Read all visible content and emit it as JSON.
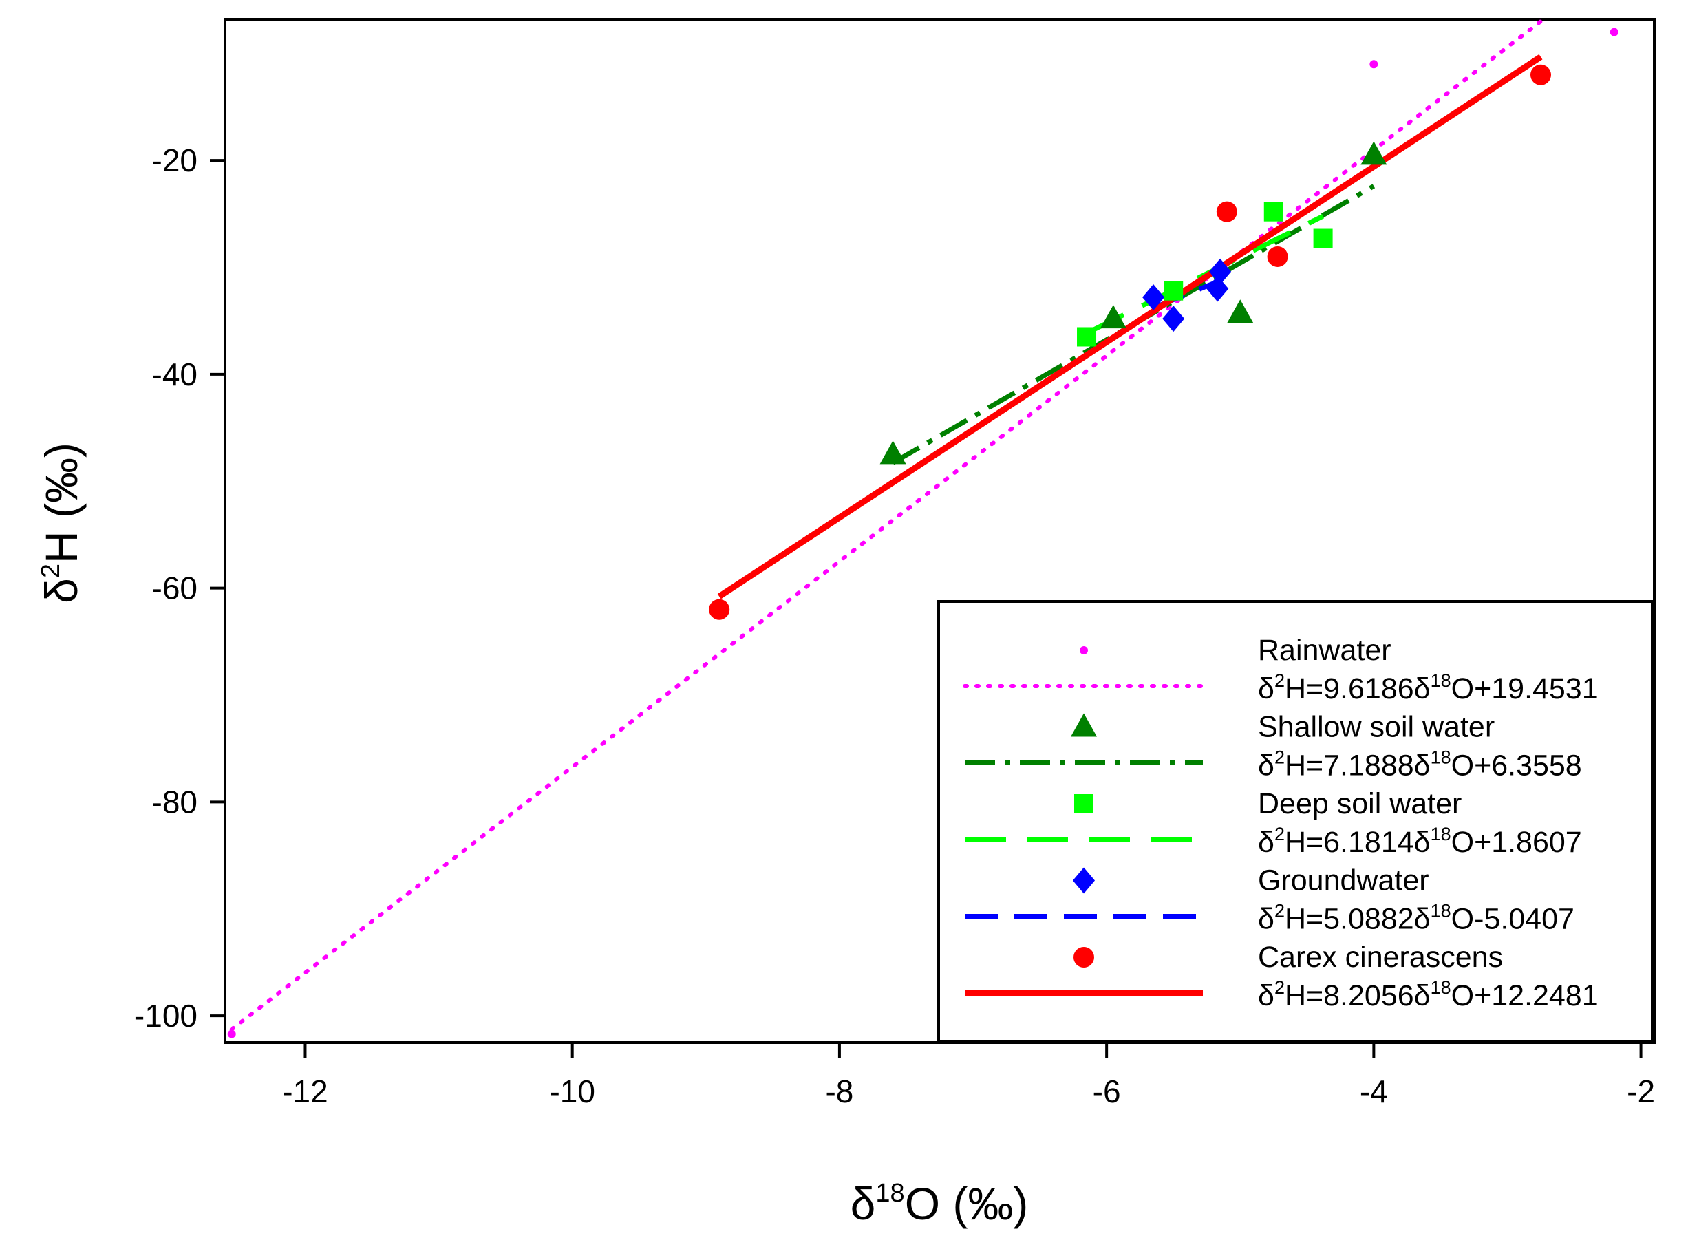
{
  "chart_data": {
    "type": "scatter",
    "title": "",
    "xlabel": {
      "main": "δ",
      "sup": "18",
      "rest": "O (‰)"
    },
    "ylabel": {
      "main": "δ",
      "sup": "2",
      "rest": "H (‰)"
    },
    "xlim": [
      -12.6,
      -1.9
    ],
    "ylim": [
      -102.5,
      -6.8
    ],
    "x_ticks": [
      -12,
      -10,
      -8,
      -6,
      -4,
      -2
    ],
    "y_ticks": [
      -100,
      -80,
      -60,
      -40,
      -20
    ],
    "x_tick_labels": [
      "-12",
      "-10",
      "-8",
      "-6",
      "-4",
      "-2"
    ],
    "y_tick_labels": [
      "-100",
      "-80",
      "-60",
      "-40",
      "-20"
    ],
    "legend_position": "bottom-right",
    "series": [
      {
        "key": "rain",
        "name": "Rainwater",
        "color": "#ff00ff",
        "marker": "dot",
        "line_style": "dotted",
        "x": [
          -12.55,
          -4.0,
          -2.2
        ],
        "y": [
          -101.7,
          -11.0,
          -8.0
        ],
        "fit": {
          "slope": 9.6186,
          "intercept": 19.4531,
          "x_range": [
            -12.55,
            -2.65
          ]
        },
        "equation": {
          "a": "δ",
          "b": "2",
          "c": "H=9.6186δ",
          "d": "18",
          "e": "O+19.4531"
        }
      },
      {
        "key": "shallow",
        "name": "Shallow soil water",
        "color": "#008000",
        "marker": "triangle",
        "line_style": "dashdot",
        "x": [
          -7.6,
          -5.95,
          -5.0,
          -4.0
        ],
        "y": [
          -47.5,
          -34.8,
          -34.3,
          -19.5
        ],
        "fit": {
          "slope": 7.1888,
          "intercept": 6.3558,
          "x_range": [
            -7.6,
            -4.0
          ]
        },
        "equation": {
          "a": "δ",
          "b": "2",
          "c": "H=7.1888δ",
          "d": "18",
          "e": "O+6.3558"
        }
      },
      {
        "key": "deep",
        "name": "Deep soil water",
        "color": "#00ff00",
        "marker": "square",
        "line_style": "longdash",
        "x": [
          -6.15,
          -5.5,
          -4.75,
          -4.38
        ],
        "y": [
          -36.5,
          -32.2,
          -24.8,
          -27.3
        ],
        "fit": {
          "slope": 6.1814,
          "intercept": 1.8607,
          "x_range": [
            -6.15,
            -4.38
          ]
        },
        "equation": {
          "a": "δ",
          "b": "2",
          "c": "H=6.1814δ",
          "d": "18",
          "e": "O+1.8607"
        }
      },
      {
        "key": "ground",
        "name": "Groundwater",
        "color": "#0000ff",
        "marker": "diamond",
        "line_style": "dashed",
        "x": [
          -5.65,
          -5.5,
          -5.17,
          -5.15
        ],
        "y": [
          -32.8,
          -34.8,
          -32.0,
          -30.4
        ],
        "fit": {
          "slope": 5.0882,
          "intercept": -5.0407,
          "x_range": [
            -5.65,
            -5.15
          ]
        },
        "equation": {
          "a": "δ",
          "b": "2",
          "c": "H=5.0882δ",
          "d": "18",
          "e": "O-5.0407"
        }
      },
      {
        "key": "carex",
        "name": "Carex cinerascens",
        "color": "#ff0000",
        "marker": "circle",
        "line_style": "solid",
        "x": [
          -8.9,
          -5.1,
          -4.72,
          -2.75
        ],
        "y": [
          -62.0,
          -24.8,
          -29.0,
          -12.0
        ],
        "fit": {
          "slope": 8.2056,
          "intercept": 12.2481,
          "x_range": [
            -8.9,
            -2.75
          ]
        },
        "equation": {
          "a": "δ",
          "b": "2",
          "c": "H=8.2056δ",
          "d": "18",
          "e": "O+12.2481"
        }
      }
    ]
  }
}
